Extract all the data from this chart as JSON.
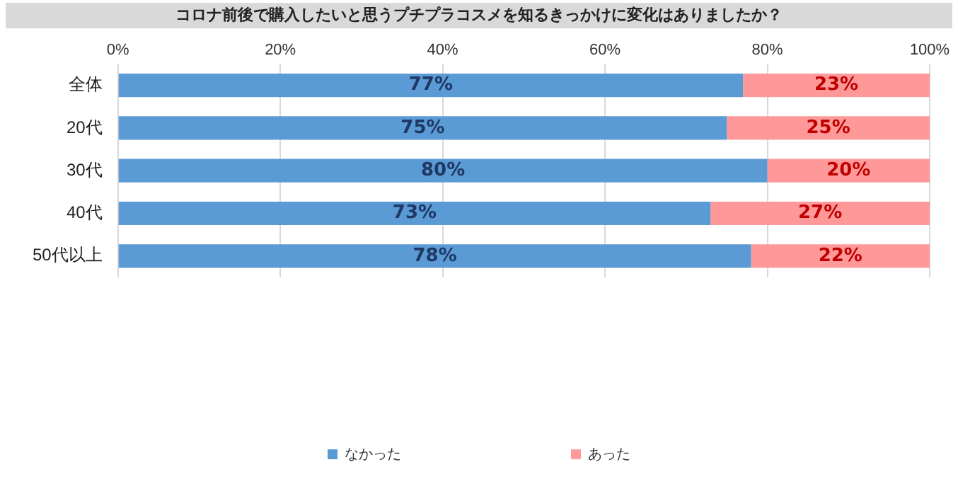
{
  "chart_data": {
    "type": "bar",
    "orientation": "horizontal",
    "stacked": true,
    "title": "コロナ前後で購入したいと思うプチプラコスメを知るきっかけに変化はありましたか？",
    "categories": [
      "全体",
      "20代",
      "30代",
      "40代",
      "50代以上"
    ],
    "series": [
      {
        "name": "なかった",
        "color": "#5b9bd5",
        "values": [
          77,
          75,
          80,
          73,
          78
        ],
        "value_labels": [
          "77%",
          "75%",
          "80%",
          "73%",
          "78%"
        ]
      },
      {
        "name": "あった",
        "color": "#ff9999",
        "values": [
          23,
          25,
          20,
          27,
          22
        ],
        "value_labels": [
          "23%",
          "25%",
          "20%",
          "27%",
          "22%"
        ]
      }
    ],
    "xlim": [
      0,
      100
    ],
    "xticks": [
      {
        "value": 0,
        "label": "0%"
      },
      {
        "value": 20,
        "label": "20%"
      },
      {
        "value": 40,
        "label": "40%"
      },
      {
        "value": 60,
        "label": "60%"
      },
      {
        "value": 80,
        "label": "80%"
      },
      {
        "value": 100,
        "label": "100%"
      }
    ],
    "grid": "x",
    "legend": "bottom"
  }
}
